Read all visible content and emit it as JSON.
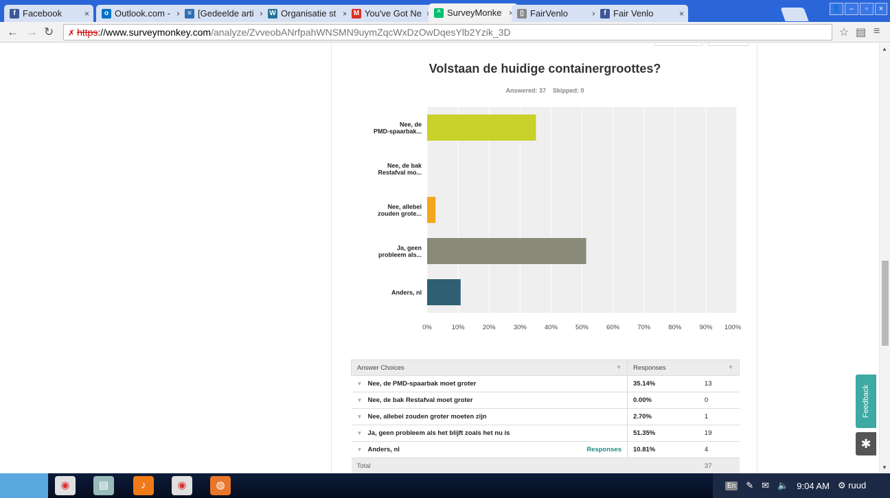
{
  "tabs": [
    {
      "title": "Facebook",
      "icon": "facebook-icon",
      "color": "#3b5998",
      "glyph": "f"
    },
    {
      "title": "Outlook.com -",
      "icon": "outlook-icon",
      "color": "#0072c6",
      "glyph": "o"
    },
    {
      "title": "[Gedeelde arti",
      "icon": "reader-icon",
      "color": "#2e6fb5",
      "glyph": "≡"
    },
    {
      "title": "Organisatie st",
      "icon": "wordpress-icon",
      "color": "#21759b",
      "glyph": "W"
    },
    {
      "title": "You've Got Ne",
      "icon": "gmail-icon",
      "color": "#d93025",
      "glyph": "M"
    },
    {
      "title": "SurveyMonke",
      "icon": "surveymonkey-icon",
      "color": "#00bf6f",
      "glyph": "^"
    },
    {
      "title": "FairVenlo",
      "icon": "page-icon",
      "color": "#888888",
      "glyph": "▯"
    },
    {
      "title": "Fair Venlo",
      "icon": "facebook-icon",
      "color": "#3b5998",
      "glyph": "f"
    }
  ],
  "close_glyph": "×",
  "address": {
    "scheme": "https",
    "host": "://www.surveymonkey.com",
    "path": "/analyze/ZvveobANrfpahWNSMN9uymZqcWxDzOwDqesYlb2Yzik_3D"
  },
  "question": {
    "title": "Volstaan de huidige containergroottes?",
    "answered_label": "Answered:",
    "answered": "37",
    "skipped_label": "Skipped:",
    "skipped": "0"
  },
  "chart_data": {
    "type": "bar",
    "orientation": "horizontal",
    "categories": [
      [
        "Nee, de",
        "PMD-spaarbak..."
      ],
      [
        "Nee, de bak",
        "Restafval mo..."
      ],
      [
        "Nee, allebei",
        "zouden grote..."
      ],
      [
        "Ja, geen",
        "probleem als..."
      ],
      [
        "Anders, nl"
      ]
    ],
    "values": [
      35.14,
      0.0,
      2.7,
      51.35,
      10.81
    ],
    "colors": [
      "#c9d12b",
      "#5d7f9e",
      "#f4a61d",
      "#8a8a78",
      "#2f5f72"
    ],
    "xlim": [
      0,
      100
    ],
    "xticks": [
      "0%",
      "10%",
      "20%",
      "30%",
      "40%",
      "50%",
      "60%",
      "70%",
      "80%",
      "90%",
      "100%"
    ],
    "grid": true
  },
  "table": {
    "header_choice": "Answer Choices",
    "header_responses": "Responses",
    "rows": [
      {
        "choice": "Nee, de PMD-spaarbak moet groter",
        "pct": "35.14%",
        "count": "13",
        "link": ""
      },
      {
        "choice": "Nee, de bak Restafval moet groter",
        "pct": "0.00%",
        "count": "0",
        "link": ""
      },
      {
        "choice": "Nee, allebei zouden groter moeten zijn",
        "pct": "2.70%",
        "count": "1",
        "link": ""
      },
      {
        "choice": "Ja, geen probleem als het blijft zoals het nu is",
        "pct": "51.35%",
        "count": "19",
        "link": ""
      },
      {
        "choice": "Anders, nl",
        "pct": "10.81%",
        "count": "4",
        "link": "Responses"
      }
    ],
    "total_label": "Total",
    "total": "37"
  },
  "feedback_label": "Feedback",
  "tray": {
    "lang": "En",
    "time": "9:04 AM",
    "user": "ruud"
  }
}
